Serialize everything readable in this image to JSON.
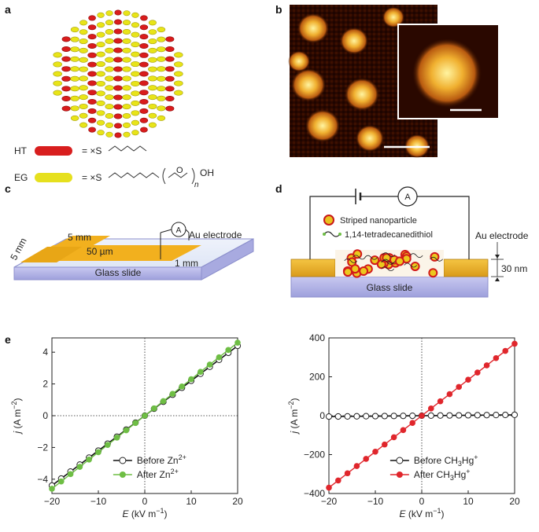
{
  "figure": {
    "panel_a": {
      "letter": "a",
      "legend": [
        {
          "abbr": "HT",
          "color": "#d81e1e",
          "formula_head": "= ×S"
        },
        {
          "abbr": "EG",
          "color": "#e6e01e",
          "formula_head": "= ×S",
          "formula_tail": "OH",
          "subscript": "n"
        }
      ]
    },
    "panel_b": {
      "letter": "b"
    },
    "panel_c": {
      "letter": "c",
      "labels": {
        "top_width": "5 mm",
        "side_length": "5 mm",
        "gap": "50 µm",
        "edge": "1 mm",
        "electrode": "Au electrode",
        "substrate": "Glass slide",
        "meter": "A"
      }
    },
    "panel_d": {
      "letter": "d",
      "labels": {
        "meter": "A",
        "nanoparticle": "Striped nanoparticle",
        "dithiol": "1,14-tetradecanedithiol",
        "electrode": "Au  electrode",
        "thickness": "30  nm",
        "substrate": "Glass slide"
      }
    },
    "panel_e": {
      "letter": "e"
    }
  },
  "chart_data": [
    {
      "type": "line",
      "xlabel_var": "E",
      "xlabel_unit": "(kV m",
      "xlabel_exp": "−1",
      "xlabel_close": ")",
      "ylabel_var": "j",
      "ylabel_unit": "(A m",
      "ylabel_exp": "−2",
      "ylabel_close": ")",
      "xlim": [
        -20,
        20
      ],
      "ylim": [
        -4.9,
        4.9
      ],
      "xticks": [
        -20,
        -10,
        0,
        10,
        20
      ],
      "xtick_labels": [
        "−20",
        "−10",
        "0",
        "10",
        "20"
      ],
      "yticks": [
        -4,
        -2,
        0,
        2,
        4
      ],
      "ytick_labels": [
        "−4",
        "−2",
        "0",
        "2",
        "4"
      ],
      "legend_position": "lower-right",
      "series": [
        {
          "name": "Before Zn",
          "sup": "2+",
          "color": "#222222",
          "marker": "open-circle",
          "x": [
            -20,
            -18,
            -16,
            -14,
            -12,
            -10,
            -8,
            -6,
            -4,
            -2,
            0,
            2,
            4,
            6,
            8,
            10,
            12,
            14,
            16,
            18,
            20
          ],
          "y": [
            -4.4,
            -3.96,
            -3.52,
            -3.08,
            -2.64,
            -2.2,
            -1.76,
            -1.32,
            -0.88,
            -0.44,
            0,
            0.44,
            0.88,
            1.32,
            1.76,
            2.2,
            2.64,
            3.08,
            3.52,
            3.96,
            4.4
          ]
        },
        {
          "name": "After Zn",
          "sup": "2+",
          "color": "#6ebe44",
          "marker": "filled-circle",
          "x": [
            -20,
            -18,
            -16,
            -14,
            -12,
            -10,
            -8,
            -6,
            -4,
            -2,
            0,
            2,
            4,
            6,
            8,
            10,
            12,
            14,
            16,
            18,
            20
          ],
          "y": [
            -4.6,
            -4.14,
            -3.68,
            -3.22,
            -2.76,
            -2.3,
            -1.84,
            -1.38,
            -0.92,
            -0.46,
            0,
            0.46,
            0.92,
            1.38,
            1.84,
            2.3,
            2.76,
            3.22,
            3.68,
            4.14,
            4.6
          ]
        }
      ]
    },
    {
      "type": "line",
      "xlabel_var": "E",
      "xlabel_unit": "(kV m",
      "xlabel_exp": "−1",
      "xlabel_close": ")",
      "ylabel_var": "j",
      "ylabel_unit": "(A m",
      "ylabel_exp": "−2",
      "ylabel_close": ")",
      "xlim": [
        -20,
        20
      ],
      "ylim": [
        -400,
        400
      ],
      "xticks": [
        -20,
        -10,
        0,
        10,
        20
      ],
      "xtick_labels": [
        "−20",
        "−10",
        "0",
        "10",
        "20"
      ],
      "yticks": [
        -400,
        -200,
        0,
        200,
        400
      ],
      "ytick_labels": [
        "−400",
        "−200",
        "0",
        "200",
        "400"
      ],
      "legend_position": "lower-right",
      "series": [
        {
          "name": "Before CH",
          "sub": "3",
          "name_tail": "Hg",
          "sup": "+",
          "color": "#222222",
          "marker": "open-circle",
          "x": [
            -20,
            -18,
            -16,
            -14,
            -12,
            -10,
            -8,
            -6,
            -4,
            -2,
            0,
            2,
            4,
            6,
            8,
            10,
            12,
            14,
            16,
            18,
            20
          ],
          "y": [
            -4.4,
            -3.96,
            -3.52,
            -3.08,
            -2.64,
            -2.2,
            -1.76,
            -1.32,
            -0.88,
            -0.44,
            0,
            0.44,
            0.88,
            1.32,
            1.76,
            2.2,
            2.64,
            3.08,
            3.52,
            3.96,
            4.4
          ]
        },
        {
          "name": "After CH",
          "sub": "3",
          "name_tail": "Hg",
          "sup": "+",
          "color": "#e0262c",
          "marker": "filled-circle",
          "x": [
            -20,
            -18,
            -16,
            -14,
            -12,
            -10,
            -8,
            -6,
            -4,
            -2,
            0,
            2,
            4,
            6,
            8,
            10,
            12,
            14,
            16,
            18,
            20
          ],
          "y": [
            -370,
            -333,
            -296,
            -259,
            -222,
            -185,
            -148,
            -111,
            -74,
            -37,
            0,
            37,
            74,
            111,
            148,
            185,
            222,
            259,
            296,
            333,
            370
          ]
        }
      ]
    }
  ]
}
